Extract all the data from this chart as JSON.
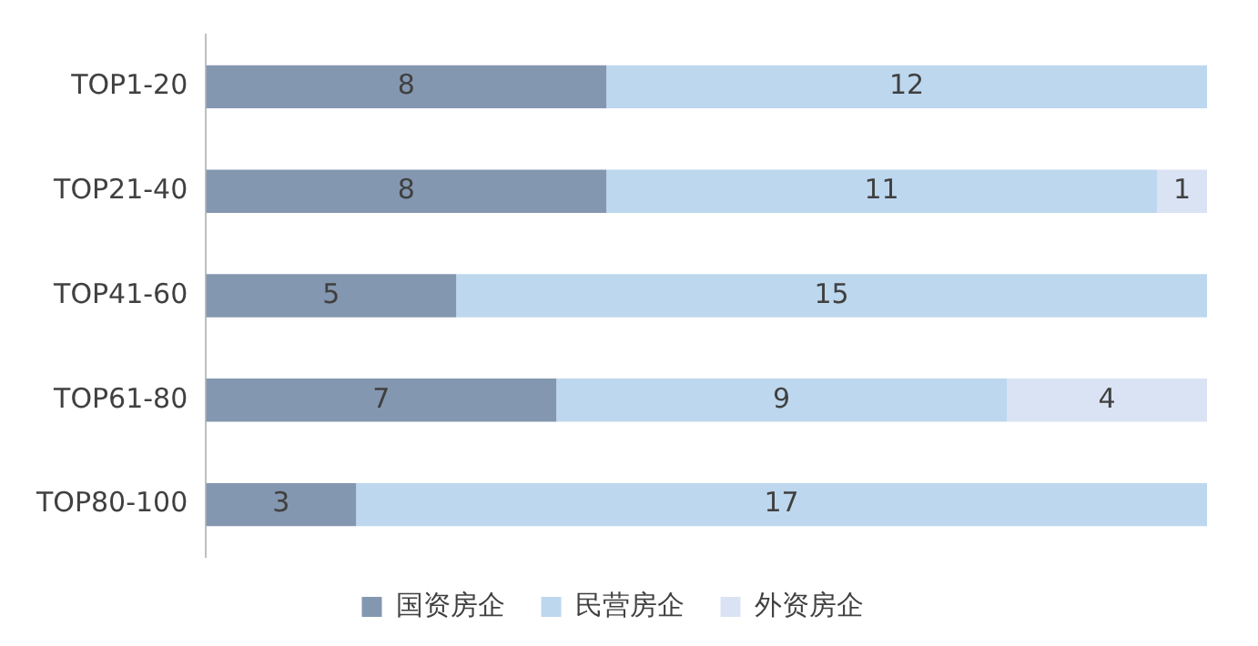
{
  "chart_data": {
    "type": "bar",
    "orientation": "horizontal",
    "stacked": true,
    "categories": [
      "TOP1-20",
      "TOP21-40",
      "TOP41-60",
      "TOP61-80",
      "TOP80-100"
    ],
    "series": [
      {
        "name": "国资房企",
        "color": "#8497b0",
        "values": [
          8,
          8,
          5,
          7,
          3
        ]
      },
      {
        "name": "民营房企",
        "color": "#bdd7ee",
        "values": [
          12,
          11,
          15,
          9,
          17
        ]
      },
      {
        "name": "外资房企",
        "color": "#dae3f3",
        "values": [
          null,
          1,
          null,
          4,
          null
        ]
      }
    ],
    "xlim": [
      0,
      20
    ],
    "tick_labels": "y",
    "legend": "bottom",
    "data_labels": true
  }
}
